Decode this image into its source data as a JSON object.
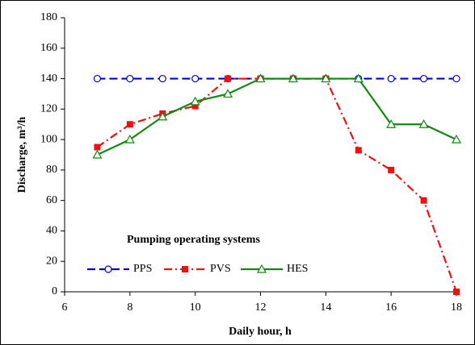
{
  "chart_data": {
    "type": "line",
    "x_label": "Daily hour, h",
    "y_label": "Discharge, m³/h",
    "legend_title": "Pumping operating systems",
    "x": [
      7,
      8,
      9,
      10,
      11,
      12,
      13,
      14,
      15,
      16,
      17,
      18
    ],
    "xlim": [
      6,
      18
    ],
    "xticks": [
      6,
      8,
      10,
      12,
      14,
      16,
      18
    ],
    "ylim": [
      0,
      180
    ],
    "yticks": [
      0,
      20,
      40,
      60,
      80,
      100,
      120,
      140,
      160,
      180
    ],
    "grid": false,
    "series": [
      {
        "name": "PPS",
        "color": "#0000cc",
        "marker": "circle",
        "linestyle": "dashed",
        "values": [
          140,
          140,
          140,
          140,
          140,
          140,
          140,
          140,
          140,
          140,
          140,
          140
        ]
      },
      {
        "name": "PVS",
        "color": "#ee1111",
        "marker": "square",
        "linestyle": "dashdot",
        "values": [
          95,
          110,
          117,
          122,
          140,
          140,
          140,
          140,
          93,
          80,
          60,
          0
        ]
      },
      {
        "name": "HES",
        "color": "#118811",
        "marker": "triangle",
        "linestyle": "solid",
        "values": [
          90,
          100,
          115,
          125,
          130,
          140,
          140,
          140,
          140,
          110,
          110,
          100
        ]
      }
    ]
  }
}
